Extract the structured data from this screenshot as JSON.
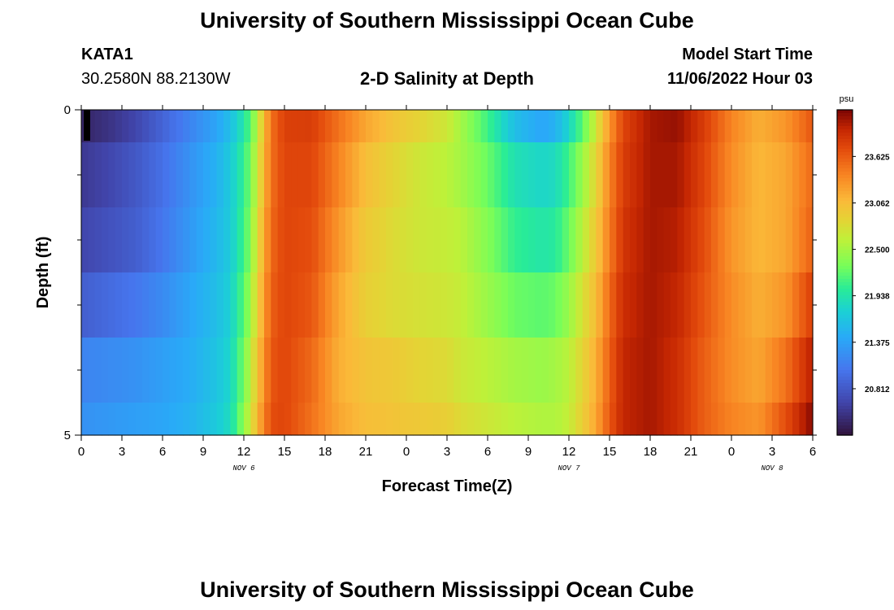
{
  "header": {
    "title": "University of Southern Mississippi Ocean Cube",
    "station": "KATA1",
    "coords": "30.2580N  88.2130W",
    "subtitle": "2-D Salinity at Depth",
    "start_label": "Model Start Time",
    "start_value": "11/06/2022 Hour 03"
  },
  "footer": {
    "title": "University of Southern Mississippi Ocean Cube"
  },
  "chart_data": {
    "type": "heatmap",
    "title": "2-D Salinity at Depth",
    "xlabel": "Forecast Time(Z)",
    "ylabel": "Depth (ft)",
    "x_tick_labels": [
      "0",
      "3",
      "6",
      "9",
      "12",
      "15",
      "18",
      "21",
      "0",
      "3",
      "6",
      "9",
      "12",
      "15",
      "18",
      "21",
      "0",
      "3",
      "6"
    ],
    "x_range_hours": [
      0,
      54
    ],
    "y_tick_labels": [
      "0",
      "5"
    ],
    "ylim": [
      0,
      5
    ],
    "date_labels": [
      {
        "label": "NOV 6",
        "hour": 12
      },
      {
        "label": "NOV 7",
        "hour": 36
      },
      {
        "label": "NOV 8",
        "hour": 51
      }
    ],
    "colorbar": {
      "unit": "psu",
      "ticks": [
        "23.625",
        "23.062",
        "22.500",
        "21.938",
        "21.375",
        "20.812"
      ],
      "tick_values": [
        23.625,
        23.062,
        22.5,
        21.938,
        21.375,
        20.812
      ],
      "range": [
        20.25,
        24.19
      ]
    },
    "depth_levels": [
      0.25,
      1.5,
      2.5,
      3.5,
      4.5,
      5.0
    ],
    "time_keys_hours": [
      0,
      2,
      4,
      6,
      8,
      10,
      11,
      12,
      12.5,
      13,
      14,
      15,
      17,
      19,
      21,
      23,
      25,
      27,
      28,
      30,
      32,
      34,
      35,
      36,
      37,
      38,
      39,
      40,
      42,
      44,
      46,
      48,
      50,
      52,
      54
    ],
    "salinity_rows": [
      [
        20.4,
        20.5,
        20.65,
        20.9,
        21.15,
        21.4,
        21.6,
        21.95,
        22.2,
        22.6,
        23.5,
        23.78,
        23.8,
        23.5,
        23.2,
        23.0,
        22.85,
        22.7,
        22.5,
        22.1,
        21.6,
        21.4,
        21.5,
        21.8,
        22.2,
        22.7,
        23.3,
        23.75,
        24.05,
        24.1,
        23.8,
        23.4,
        23.15,
        23.3,
        23.65
      ],
      [
        20.55,
        20.65,
        20.8,
        21.0,
        21.25,
        21.5,
        21.7,
        22.05,
        22.3,
        22.7,
        23.5,
        23.75,
        23.75,
        23.4,
        23.05,
        22.85,
        22.7,
        22.6,
        22.5,
        22.25,
        21.9,
        21.8,
        21.85,
        22.1,
        22.45,
        22.85,
        23.4,
        23.8,
        24.05,
        24.05,
        23.75,
        23.35,
        23.1,
        23.2,
        23.55
      ],
      [
        20.65,
        20.75,
        20.85,
        21.05,
        21.3,
        21.55,
        21.7,
        22.1,
        22.35,
        22.8,
        23.55,
        23.75,
        23.7,
        23.3,
        22.95,
        22.8,
        22.7,
        22.65,
        22.6,
        22.35,
        22.05,
        21.95,
        22.0,
        22.25,
        22.6,
        22.95,
        23.45,
        23.85,
        24.05,
        24.0,
        23.7,
        23.3,
        23.1,
        23.2,
        23.6
      ],
      [
        20.85,
        20.95,
        21.05,
        21.2,
        21.4,
        21.6,
        21.75,
        22.2,
        22.45,
        22.9,
        23.6,
        23.75,
        23.65,
        23.2,
        22.9,
        22.8,
        22.75,
        22.7,
        22.65,
        22.45,
        22.25,
        22.2,
        22.25,
        22.45,
        22.75,
        23.05,
        23.55,
        23.9,
        24.05,
        23.95,
        23.65,
        23.35,
        23.15,
        23.3,
        23.8
      ],
      [
        21.15,
        21.2,
        21.25,
        21.35,
        21.45,
        21.65,
        21.8,
        22.3,
        22.6,
        23.0,
        23.65,
        23.75,
        23.55,
        23.15,
        23.0,
        22.95,
        22.85,
        22.8,
        22.7,
        22.6,
        22.5,
        22.45,
        22.5,
        22.6,
        22.85,
        23.15,
        23.6,
        23.95,
        24.05,
        23.9,
        23.6,
        23.35,
        23.2,
        23.5,
        24.0
      ],
      [
        21.25,
        21.3,
        21.35,
        21.4,
        21.5,
        21.7,
        21.85,
        22.4,
        22.7,
        23.1,
        23.7,
        23.75,
        23.5,
        23.2,
        23.05,
        23.0,
        22.95,
        22.9,
        22.8,
        22.7,
        22.6,
        22.55,
        22.55,
        22.65,
        22.9,
        23.2,
        23.65,
        23.95,
        24.05,
        23.9,
        23.6,
        23.4,
        23.3,
        23.7,
        24.15
      ]
    ]
  }
}
